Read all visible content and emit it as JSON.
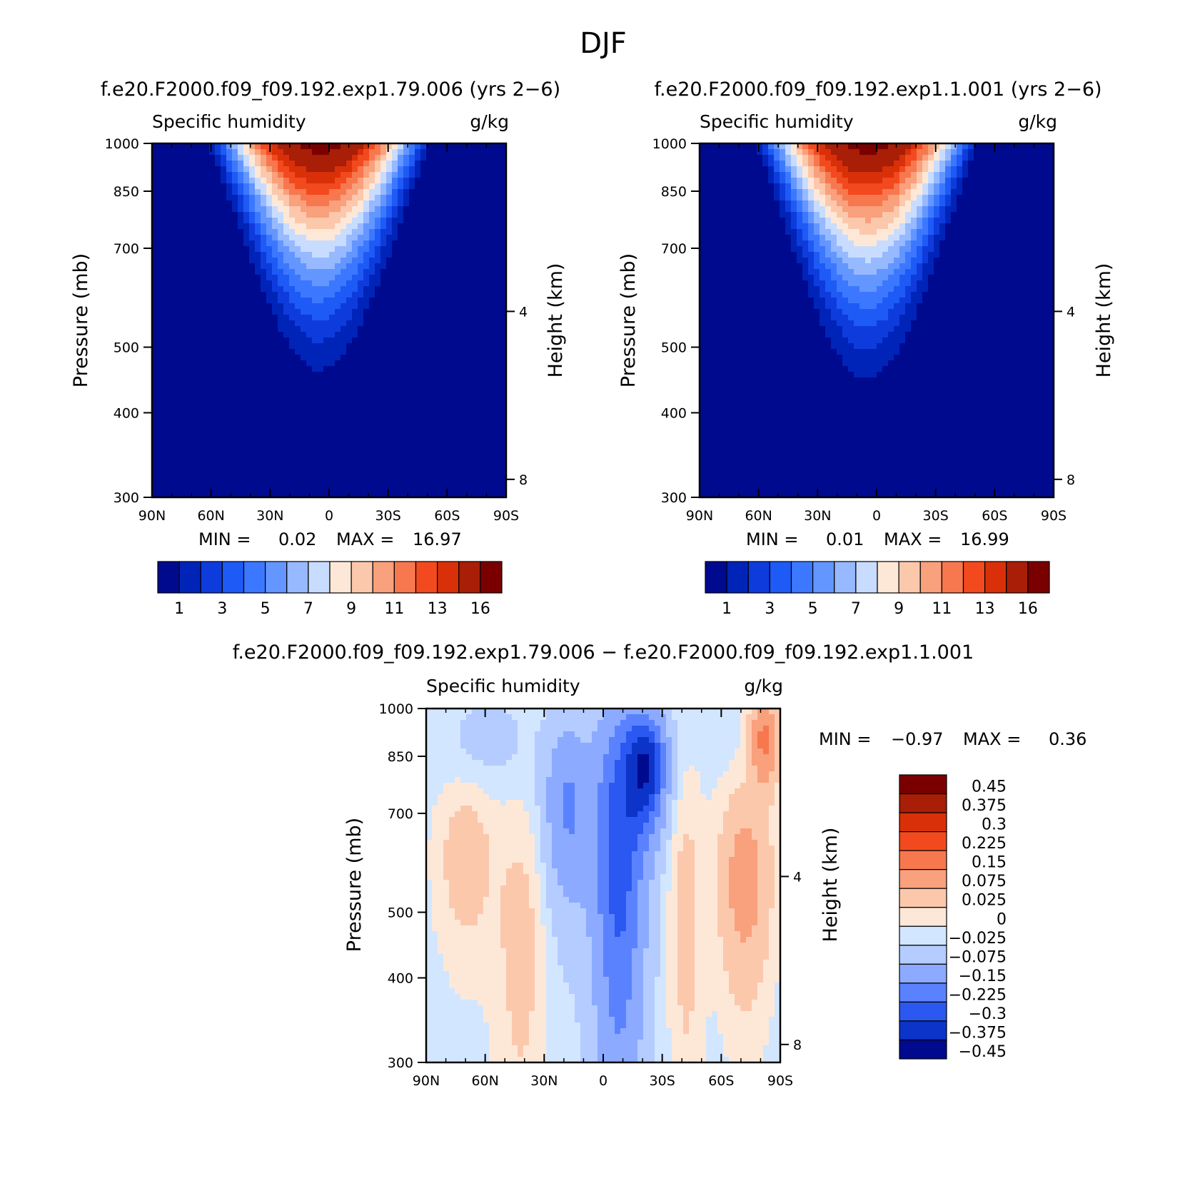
{
  "figure": {
    "title": "DJF"
  },
  "chart_data": [
    {
      "type": "heatmap",
      "title": "f.e20.F2000.f09_f09.192.exp1.79.006 (yrs 2−6)",
      "left_label": "Specific humidity",
      "right_label": "g/kg",
      "ylabel": "Pressure (mb)",
      "ylabel_right": "Height (km)",
      "x_ticks": [
        "90N",
        "60N",
        "30N",
        "0",
        "30S",
        "60S",
        "90S"
      ],
      "y_ticks": [
        "300",
        "400",
        "500",
        "700",
        "850",
        "1000"
      ],
      "y_ticks_right": [
        "8",
        "4"
      ],
      "stats": {
        "min_label": "MIN =",
        "min": "0.02",
        "max_label": "MAX =",
        "max": "16.97"
      },
      "peak_value": 16.97,
      "peak_center_lat": 5,
      "peak_halfwidth_deg": 58,
      "top_pressure_hpa": 420,
      "colorbar_labels": [
        "1",
        "3",
        "5",
        "7",
        "9",
        "11",
        "13",
        "16"
      ],
      "colorbar_levels": [
        1,
        2,
        3,
        4,
        5,
        6,
        7,
        8,
        9,
        10,
        11,
        12,
        13,
        14,
        16
      ],
      "colorbar_colors": [
        "#000a8f",
        "#0024b8",
        "#0e3cdc",
        "#1e5af5",
        "#3c78ff",
        "#6496ff",
        "#96b9ff",
        "#c8dcff",
        "#fde8d8",
        "#fcc8ac",
        "#f9a07c",
        "#f7784e",
        "#f24a1e",
        "#d9300a",
        "#a81e06",
        "#7a0000"
      ]
    },
    {
      "type": "heatmap",
      "title": "f.e20.F2000.f09_f09.192.exp1.1.001 (yrs 2−6)",
      "left_label": "Specific humidity",
      "right_label": "g/kg",
      "ylabel": "Pressure (mb)",
      "ylabel_right": "Height (km)",
      "x_ticks": [
        "90N",
        "60N",
        "30N",
        "0",
        "30S",
        "60S",
        "90S"
      ],
      "y_ticks": [
        "300",
        "400",
        "500",
        "700",
        "850",
        "1000"
      ],
      "y_ticks_right": [
        "8",
        "4"
      ],
      "stats": {
        "min_label": "MIN =",
        "min": "0.01",
        "max_label": "MAX =",
        "max": "16.99"
      },
      "peak_value": 16.99,
      "peak_center_lat": 5,
      "peak_halfwidth_deg": 58,
      "top_pressure_hpa": 405,
      "colorbar_labels": [
        "1",
        "3",
        "5",
        "7",
        "9",
        "11",
        "13",
        "16"
      ],
      "colorbar_levels": [
        1,
        2,
        3,
        4,
        5,
        6,
        7,
        8,
        9,
        10,
        11,
        12,
        13,
        14,
        16
      ],
      "colorbar_colors": [
        "#000a8f",
        "#0024b8",
        "#0e3cdc",
        "#1e5af5",
        "#3c78ff",
        "#6496ff",
        "#96b9ff",
        "#c8dcff",
        "#fde8d8",
        "#fcc8ac",
        "#f9a07c",
        "#f7784e",
        "#f24a1e",
        "#d9300a",
        "#a81e06",
        "#7a0000"
      ]
    },
    {
      "type": "heatmap",
      "title": "f.e20.F2000.f09_f09.192.exp1.79.006 − f.e20.F2000.f09_f09.192.exp1.1.001",
      "left_label": "Specific humidity",
      "right_label": "g/kg",
      "ylabel": "Pressure (mb)",
      "ylabel_right": "Height (km)",
      "x_ticks": [
        "90N",
        "60N",
        "30N",
        "0",
        "30S",
        "60S",
        "90S"
      ],
      "y_ticks": [
        "300",
        "400",
        "500",
        "700",
        "850",
        "1000"
      ],
      "y_ticks_right": [
        "8",
        "4"
      ],
      "stats": {
        "min_label": "MIN =",
        "min": "−0.97",
        "max_label": "MAX =",
        "max": "0.36"
      },
      "colorbar_labels": [
        "0.45",
        "0.375",
        "0.3",
        "0.225",
        "0.15",
        "0.075",
        "0.025",
        "0",
        "−0.025",
        "−0.075",
        "−0.15",
        "−0.225",
        "−0.3",
        "−0.375",
        "−0.45"
      ],
      "colorbar_colors": [
        "#7a0000",
        "#a81e06",
        "#d9300a",
        "#f24a1e",
        "#f7784e",
        "#f9a07c",
        "#fcc8ac",
        "#fde8d8",
        "#d2e6ff",
        "#b4ccff",
        "#8caaff",
        "#5a82ff",
        "#2a58f0",
        "#0c34c8",
        "#000a8f"
      ],
      "anomaly_features": [
        {
          "lat": 70,
          "p": 600,
          "value": 0.06,
          "sigma_lat": 10,
          "sigma_p": 120
        },
        {
          "lat": 42,
          "p": 450,
          "value": 0.05,
          "sigma_lat": 9,
          "sigma_p": 170
        },
        {
          "lat": 18,
          "p": 720,
          "value": -0.15,
          "sigma_lat": 8,
          "sigma_p": 150
        },
        {
          "lat": -8,
          "p": 620,
          "value": -0.26,
          "sigma_lat": 9,
          "sigma_p": 260
        },
        {
          "lat": -22,
          "p": 820,
          "value": -0.33,
          "sigma_lat": 7,
          "sigma_p": 110
        },
        {
          "lat": -42,
          "p": 500,
          "value": 0.05,
          "sigma_lat": 6,
          "sigma_p": 200
        },
        {
          "lat": -72,
          "p": 560,
          "value": 0.12,
          "sigma_lat": 9,
          "sigma_p": 130
        },
        {
          "lat": -82,
          "p": 900,
          "value": 0.18,
          "sigma_lat": 5,
          "sigma_p": 90
        },
        {
          "lat": 58,
          "p": 900,
          "value": -0.03,
          "sigma_lat": 14,
          "sigma_p": 90
        }
      ]
    }
  ]
}
